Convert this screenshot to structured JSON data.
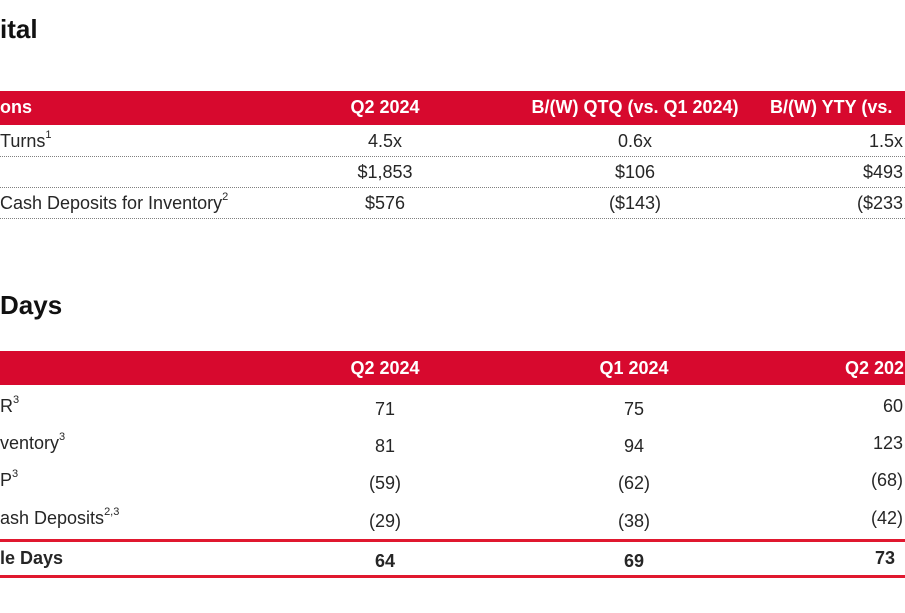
{
  "section1": {
    "title": "ital",
    "headers": [
      "ons",
      "Q2 2024",
      "B/(W) QTQ (vs. Q1 2024)",
      "B/(W) YTY (vs."
    ],
    "rows": [
      {
        "label": "Turns",
        "sup": "1",
        "values": [
          "4.5x",
          "0.6x",
          "1.5x"
        ]
      },
      {
        "label": "",
        "sup": "",
        "values": [
          "$1,853",
          "$106",
          "$493"
        ]
      },
      {
        "label": "Cash Deposits for Inventory",
        "sup": "2",
        "values": [
          "$576",
          "($143)",
          "($233"
        ]
      }
    ]
  },
  "section2": {
    "title": "Days",
    "headers": [
      "",
      "Q2 2024",
      "Q1 2024",
      "Q2 202"
    ],
    "rows": [
      {
        "label": "R",
        "sup": "3",
        "values": [
          "71",
          "75",
          "60"
        ]
      },
      {
        "label": "ventory",
        "sup": "3",
        "values": [
          "81",
          "94",
          "123"
        ]
      },
      {
        "label": "P",
        "sup": "3",
        "values": [
          "(59)",
          "(62)",
          "(68)"
        ]
      },
      {
        "label": "ash Deposits",
        "sup": "2,3",
        "values": [
          "(29)",
          "(38)",
          "(42)"
        ]
      }
    ],
    "total": {
      "label": "le Days",
      "values": [
        "64",
        "69",
        "73"
      ]
    }
  },
  "colors": {
    "header_red": "#d7092e",
    "total_border": "#e0182f"
  }
}
